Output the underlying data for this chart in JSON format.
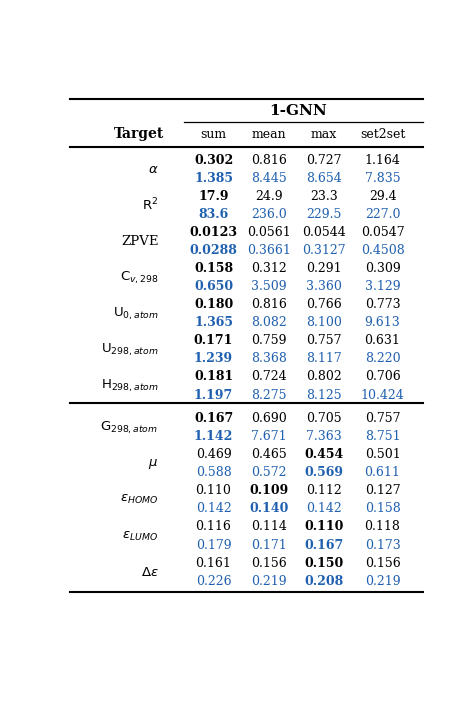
{
  "title": "1-GNN",
  "col_header": [
    "sum",
    "mean",
    "max",
    "set2set"
  ],
  "rows": [
    {
      "label": "$\\alpha$",
      "rows_data": [
        {
          "values": [
            "0.302",
            "0.816",
            "0.727",
            "1.164"
          ],
          "color": "black",
          "bold": [
            true,
            false,
            false,
            false
          ]
        },
        {
          "values": [
            "1.385",
            "8.445",
            "8.654",
            "7.835"
          ],
          "color": "blue",
          "bold": [
            true,
            false,
            false,
            false
          ]
        }
      ]
    },
    {
      "label": "$\\mathrm{R}^2$",
      "rows_data": [
        {
          "values": [
            "17.9",
            "24.9",
            "23.3",
            "29.4"
          ],
          "color": "black",
          "bold": [
            true,
            false,
            false,
            false
          ]
        },
        {
          "values": [
            "83.6",
            "236.0",
            "229.5",
            "227.0"
          ],
          "color": "blue",
          "bold": [
            true,
            false,
            false,
            false
          ]
        }
      ]
    },
    {
      "label": "ZPVE",
      "rows_data": [
        {
          "values": [
            "0.0123",
            "0.0561",
            "0.0544",
            "0.0547"
          ],
          "color": "black",
          "bold": [
            true,
            false,
            false,
            false
          ]
        },
        {
          "values": [
            "0.0288",
            "0.3661",
            "0.3127",
            "0.4508"
          ],
          "color": "blue",
          "bold": [
            true,
            false,
            false,
            false
          ]
        }
      ]
    },
    {
      "label": "$\\mathrm{C}_{v,298}$",
      "rows_data": [
        {
          "values": [
            "0.158",
            "0.312",
            "0.291",
            "0.309"
          ],
          "color": "black",
          "bold": [
            true,
            false,
            false,
            false
          ]
        },
        {
          "values": [
            "0.650",
            "3.509",
            "3.360",
            "3.129"
          ],
          "color": "blue",
          "bold": [
            true,
            false,
            false,
            false
          ]
        }
      ]
    },
    {
      "label": "$\\mathrm{U}_{0,atom}$",
      "rows_data": [
        {
          "values": [
            "0.180",
            "0.816",
            "0.766",
            "0.773"
          ],
          "color": "black",
          "bold": [
            true,
            false,
            false,
            false
          ]
        },
        {
          "values": [
            "1.365",
            "8.082",
            "8.100",
            "9.613"
          ],
          "color": "blue",
          "bold": [
            true,
            false,
            false,
            false
          ]
        }
      ]
    },
    {
      "label": "$\\mathrm{U}_{298,atom}$",
      "rows_data": [
        {
          "values": [
            "0.171",
            "0.759",
            "0.757",
            "0.631"
          ],
          "color": "black",
          "bold": [
            true,
            false,
            false,
            false
          ]
        },
        {
          "values": [
            "1.239",
            "8.368",
            "8.117",
            "8.220"
          ],
          "color": "blue",
          "bold": [
            true,
            false,
            false,
            false
          ]
        }
      ]
    },
    {
      "label": "$\\mathrm{H}_{298,atom}$",
      "rows_data": [
        {
          "values": [
            "0.181",
            "0.724",
            "0.802",
            "0.706"
          ],
          "color": "black",
          "bold": [
            true,
            false,
            false,
            false
          ]
        },
        {
          "values": [
            "1.197",
            "8.275",
            "8.125",
            "10.424"
          ],
          "color": "blue",
          "bold": [
            true,
            false,
            false,
            false
          ]
        }
      ]
    },
    {
      "label": "$\\mathrm{G}_{298,atom}$",
      "rows_data": [
        {
          "values": [
            "0.167",
            "0.690",
            "0.705",
            "0.757"
          ],
          "color": "black",
          "bold": [
            true,
            false,
            false,
            false
          ]
        },
        {
          "values": [
            "1.142",
            "7.671",
            "7.363",
            "8.751"
          ],
          "color": "blue",
          "bold": [
            true,
            false,
            false,
            false
          ]
        }
      ]
    },
    {
      "label": "$\\mu$",
      "rows_data": [
        {
          "values": [
            "0.469",
            "0.465",
            "0.454",
            "0.501"
          ],
          "color": "black",
          "bold": [
            false,
            false,
            true,
            false
          ]
        },
        {
          "values": [
            "0.588",
            "0.572",
            "0.569",
            "0.611"
          ],
          "color": "blue",
          "bold": [
            false,
            false,
            true,
            false
          ]
        }
      ]
    },
    {
      "label": "$\\epsilon_{HOMO}$",
      "rows_data": [
        {
          "values": [
            "0.110",
            "0.109",
            "0.112",
            "0.127"
          ],
          "color": "black",
          "bold": [
            false,
            true,
            false,
            false
          ]
        },
        {
          "values": [
            "0.142",
            "0.140",
            "0.142",
            "0.158"
          ],
          "color": "blue",
          "bold": [
            false,
            true,
            false,
            false
          ]
        }
      ]
    },
    {
      "label": "$\\epsilon_{LUMO}$",
      "rows_data": [
        {
          "values": [
            "0.116",
            "0.114",
            "0.110",
            "0.118"
          ],
          "color": "black",
          "bold": [
            false,
            false,
            true,
            false
          ]
        },
        {
          "values": [
            "0.179",
            "0.171",
            "0.167",
            "0.173"
          ],
          "color": "blue",
          "bold": [
            false,
            false,
            true,
            false
          ]
        }
      ]
    },
    {
      "label": "$\\Delta\\epsilon$",
      "rows_data": [
        {
          "values": [
            "0.161",
            "0.156",
            "0.150",
            "0.156"
          ],
          "color": "black",
          "bold": [
            false,
            false,
            true,
            false
          ]
        },
        {
          "values": [
            "0.226",
            "0.219",
            "0.208",
            "0.219"
          ],
          "color": "blue",
          "bold": [
            false,
            false,
            true,
            false
          ]
        }
      ]
    }
  ],
  "separator_after_row": 7,
  "blue_color": "#2060B0",
  "black_color": "#000000",
  "bg_color": "#FFFFFF"
}
